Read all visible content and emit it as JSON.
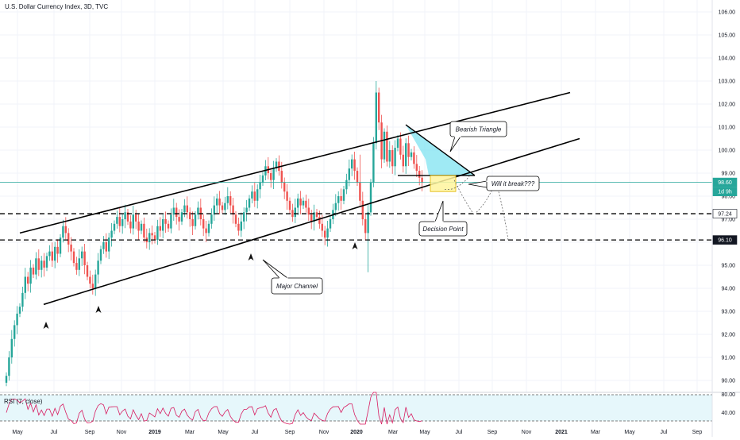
{
  "header": {
    "title": "U.S. Dollar Currency Index, 3D, TVC"
  },
  "rsi": {
    "label": "RSI (7, close)",
    "ticks": [
      "80.00",
      "40.00"
    ]
  },
  "colors": {
    "up": "#26a69a",
    "down": "#ef5350",
    "price_line": "#26a69a",
    "triangle_fill": "#7fe3f0",
    "rsi_band": "#e6f7fb",
    "rsi_line": "#d81b60",
    "decision_box": "#fff59d",
    "decision_border": "#e0b400"
  },
  "chart_data": {
    "type": "candlestick",
    "title": "U.S. Dollar Currency Index, 3D, TVC",
    "x_tick_labels": [
      "May",
      "Jul",
      "Sep",
      "Nov",
      "2019",
      "Mar",
      "May",
      "Jul",
      "Sep",
      "Nov",
      "2020",
      "Mar",
      "May",
      "Jul",
      "Sep",
      "Nov",
      "2021",
      "Mar",
      "May",
      "Jul",
      "Sep"
    ],
    "y_tick_labels": [
      "90.00",
      "91.00",
      "92.00",
      "93.00",
      "94.00",
      "95.00",
      "96.00",
      "97.00",
      "98.00",
      "99.00",
      "100.00",
      "101.00",
      "102.00",
      "103.00",
      "104.00",
      "105.00",
      "106.00"
    ],
    "ylim": [
      89.7,
      106.3
    ],
    "price_labels": [
      {
        "value": 98.6,
        "text": "98.60",
        "style": "current"
      },
      {
        "value": 98.2,
        "text": "1d 9h",
        "style": "countdown"
      },
      {
        "value": 97.24,
        "text": "97.24",
        "style": "level"
      },
      {
        "value": 96.1,
        "text": "96.10",
        "style": "level"
      }
    ],
    "horizontal_levels": [
      97.24,
      96.1
    ],
    "annotations": [
      "Bearish Triangle",
      "Will it break???",
      "Decision Point",
      "Major Channel"
    ],
    "closes": [
      90.2,
      91.0,
      91.8,
      92.4,
      92.9,
      93.2,
      93.8,
      94.5,
      94.2,
      94.9,
      94.6,
      95.3,
      94.8,
      95.2,
      94.9,
      95.4,
      95.6,
      95.2,
      95.8,
      95.5,
      96.2,
      96.7,
      96.4,
      95.9,
      95.6,
      95.1,
      94.8,
      95.3,
      95.6,
      95.0,
      94.5,
      94.2,
      94.0,
      94.6,
      95.2,
      95.7,
      96.0,
      95.6,
      96.2,
      96.5,
      96.8,
      97.1,
      96.7,
      97.0,
      97.3,
      96.9,
      96.6,
      97.2,
      96.9,
      96.5,
      96.8,
      96.2,
      96.0,
      96.4,
      96.3,
      96.1,
      96.7,
      96.5,
      97.0,
      96.8,
      96.6,
      97.2,
      97.5,
      97.1,
      96.9,
      97.3,
      97.6,
      97.3,
      97.0,
      96.7,
      97.2,
      97.5,
      97.0,
      96.6,
      96.4,
      96.8,
      97.2,
      97.6,
      97.9,
      97.6,
      97.4,
      97.7,
      98.0,
      97.6,
      97.2,
      96.8,
      96.5,
      96.9,
      97.3,
      97.5,
      97.9,
      98.2,
      97.8,
      98.3,
      98.6,
      98.9,
      99.3,
      99.0,
      98.7,
      99.2,
      99.5,
      99.1,
      98.6,
      98.2,
      97.8,
      97.4,
      97.1,
      97.5,
      97.9,
      97.6,
      97.8,
      97.5,
      97.2,
      96.9,
      97.3,
      97.1,
      96.8,
      96.5,
      96.2,
      96.6,
      97.0,
      97.4,
      97.7,
      98.0,
      97.8,
      98.3,
      98.7,
      99.2,
      99.6,
      99.1,
      98.6,
      97.8,
      97.0,
      96.4,
      97.3,
      98.6,
      100.3,
      102.5,
      101.2,
      99.6,
      100.8,
      99.5,
      100.0,
      99.3,
      100.1,
      100.5,
      99.8,
      99.3,
      100.3,
      99.7,
      99.9,
      99.4,
      99.1,
      98.8,
      98.6
    ]
  }
}
